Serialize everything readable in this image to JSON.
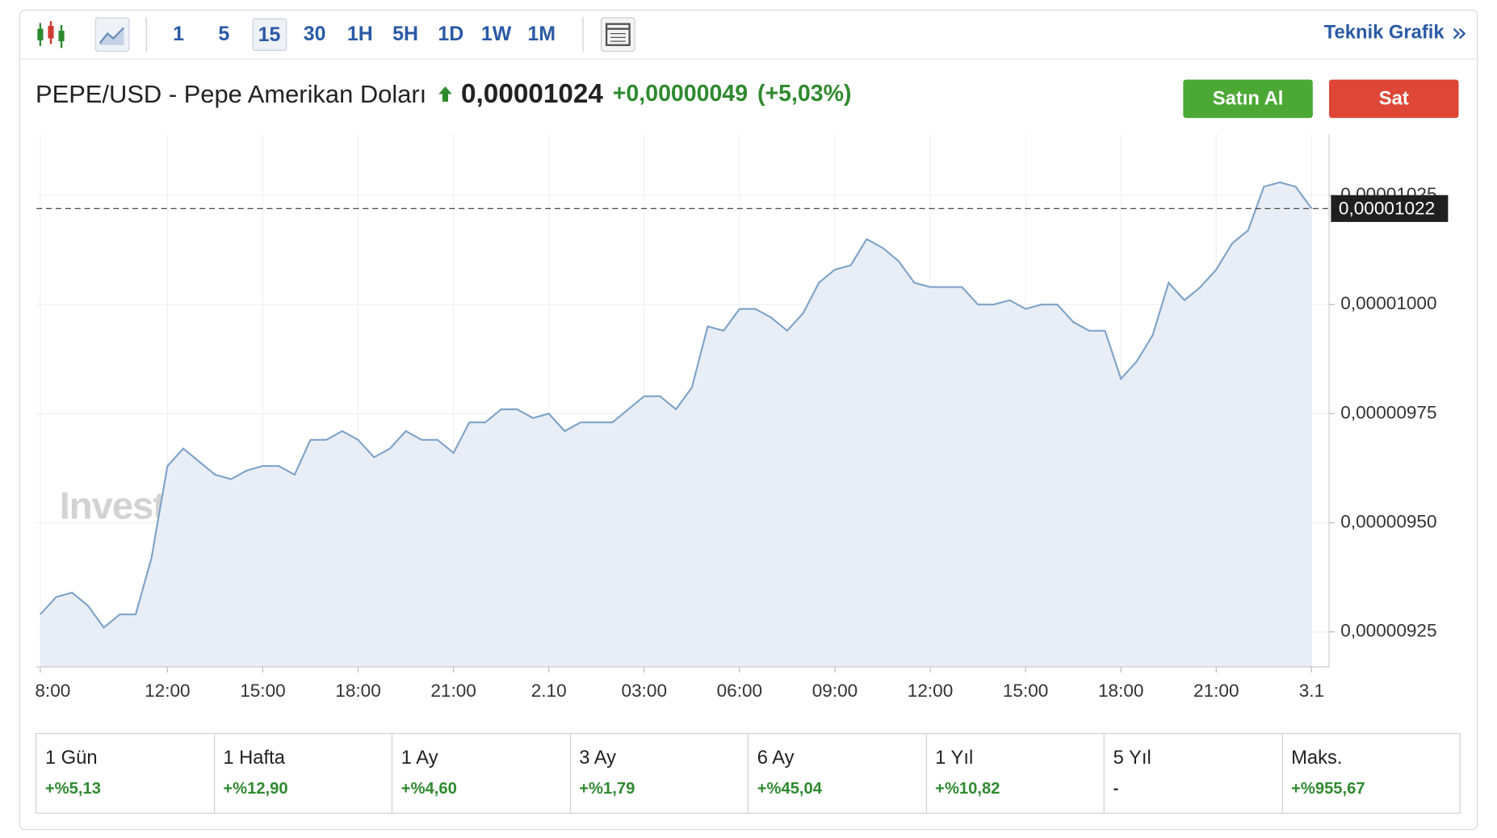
{
  "toolbar": {
    "intervals": [
      "1",
      "5",
      "15",
      "30",
      "1H",
      "5H",
      "1D",
      "1W",
      "1M"
    ],
    "selected_index": 2,
    "link": "Teknik Grafik"
  },
  "header": {
    "instrument": "PEPE/USD - Pepe Amerikan Doları",
    "price": "0,00001024",
    "change": "+0,00000049",
    "change_percent": "(+5,03%)",
    "buy_button": "Satın Al",
    "sell_button": "Sat"
  },
  "chart_data": {
    "type": "line",
    "color": "#7ea3c9",
    "area_color": "#e9eef6",
    "grid": true,
    "watermark": "Investing.com",
    "categories": [
      "8:00",
      null,
      null,
      null,
      null,
      null,
      null,
      null,
      "12:00",
      null,
      null,
      null,
      null,
      null,
      "15:00",
      null,
      null,
      null,
      null,
      null,
      "18:00",
      null,
      null,
      null,
      null,
      null,
      "21:00",
      null,
      null,
      null,
      null,
      null,
      "2.10",
      null,
      null,
      null,
      null,
      null,
      "03:00",
      null,
      null,
      null,
      null,
      null,
      "06:00",
      null,
      null,
      null,
      null,
      null,
      "09:00",
      null,
      null,
      null,
      null,
      null,
      "12:00",
      null,
      null,
      null,
      null,
      null,
      "15:00",
      null,
      null,
      null,
      null,
      null,
      "18:00",
      null,
      null,
      null,
      null,
      null,
      "21:00",
      null,
      null,
      null,
      null,
      null,
      "3.1"
    ],
    "values": [
      9.29e-06,
      9.33e-06,
      9.34e-06,
      9.31e-06,
      9.26e-06,
      9.29e-06,
      9.29e-06,
      9.42e-06,
      9.63e-06,
      9.67e-06,
      9.64e-06,
      9.61e-06,
      9.6e-06,
      9.62e-06,
      9.63e-06,
      9.63e-06,
      9.61e-06,
      9.69e-06,
      9.69e-06,
      9.71e-06,
      9.69e-06,
      9.65e-06,
      9.67e-06,
      9.71e-06,
      9.69e-06,
      9.69e-06,
      9.66e-06,
      9.73e-06,
      9.73e-06,
      9.76e-06,
      9.76e-06,
      9.74e-06,
      9.75e-06,
      9.71e-06,
      9.73e-06,
      9.73e-06,
      9.73e-06,
      9.76e-06,
      9.79e-06,
      9.79e-06,
      9.76e-06,
      9.81e-06,
      9.95e-06,
      9.94e-06,
      9.99e-06,
      9.99e-06,
      9.97e-06,
      9.94e-06,
      9.98e-06,
      1.005e-05,
      1.008e-05,
      1.009e-05,
      1.015e-05,
      1.013e-05,
      1.01e-05,
      1.005e-05,
      1.004e-05,
      1.004e-05,
      1.004e-05,
      1e-05,
      1e-05,
      1.001e-05,
      9.99e-06,
      1e-05,
      1e-05,
      9.96e-06,
      9.94e-06,
      9.94e-06,
      9.83e-06,
      9.87e-06,
      9.93e-06,
      1.005e-05,
      1.001e-05,
      1.004e-05,
      1.008e-05,
      1.014e-05,
      1.017e-05,
      1.027e-05,
      1.028e-05,
      1.027e-05,
      1.022e-05
    ],
    "ylim": [
      9.17e-06,
      1.039e-05
    ],
    "yticks": [
      {
        "value": 9.25e-06,
        "label": "0,00000925"
      },
      {
        "value": 9.5e-06,
        "label": "0,00000950"
      },
      {
        "value": 9.75e-06,
        "label": "0,00000975"
      },
      {
        "value": 1e-05,
        "label": "0,00001000"
      },
      {
        "value": 1.025e-05,
        "label": "0,00001025"
      }
    ],
    "last_price": {
      "value": 1.022e-05,
      "label": "0,00001022"
    }
  },
  "performance": [
    {
      "period": "1 Gün",
      "change": "+%5,13"
    },
    {
      "period": "1 Hafta",
      "change": "+%12,90"
    },
    {
      "period": "1 Ay",
      "change": "+%4,60"
    },
    {
      "period": "3 Ay",
      "change": "+%1,79"
    },
    {
      "period": "6 Ay",
      "change": "+%45,04"
    },
    {
      "period": "1 Yıl",
      "change": "+%10,82"
    },
    {
      "period": "5 Yıl",
      "change": "-"
    },
    {
      "period": "Maks.",
      "change": "+%955,67"
    }
  ]
}
